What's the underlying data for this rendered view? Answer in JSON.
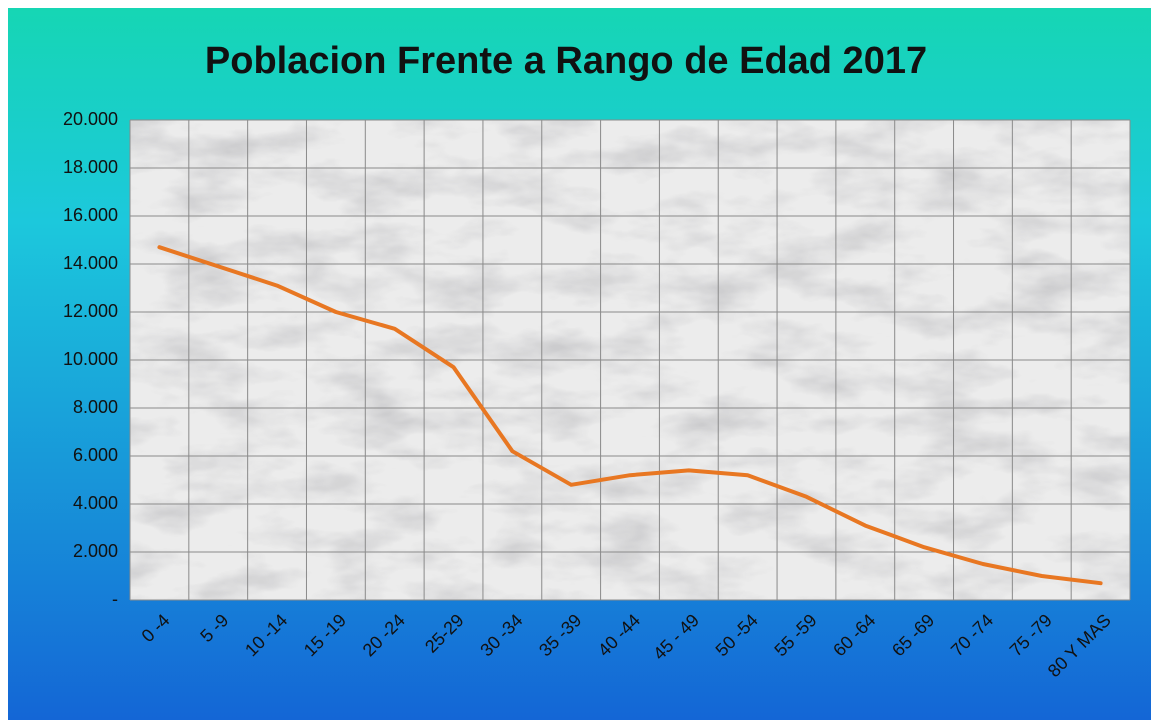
{
  "chart_data": {
    "type": "line",
    "title": "Poblacion Frente a Rango de Edad 2017",
    "categories": [
      "0 -4",
      "5 -9",
      "10 -14",
      "15 -19",
      "20 -24",
      "25-29",
      "30 -34",
      "35 -39",
      "40 -44",
      "45 - 49",
      "50 -54",
      "55 -59",
      "60 -64",
      "65 -69",
      "70 -74",
      "75 -79",
      "80 Y MAS"
    ],
    "series": [
      {
        "color": "#e87722",
        "values": [
          14700,
          13900,
          13100,
          12000,
          11300,
          9700,
          6200,
          4800,
          5200,
          5400,
          5200,
          4300,
          3100,
          2200,
          1500,
          1000,
          700
        ]
      }
    ],
    "ylim": [
      0,
      20000
    ],
    "yticks": [
      {
        "value": 0,
        "label": "-"
      },
      {
        "value": 2000,
        "label": "2.000"
      },
      {
        "value": 4000,
        "label": "4.000"
      },
      {
        "value": 6000,
        "label": "6.000"
      },
      {
        "value": 8000,
        "label": "8.000"
      },
      {
        "value": 10000,
        "label": "10.000"
      },
      {
        "value": 12000,
        "label": "12.000"
      },
      {
        "value": 14000,
        "label": "14.000"
      },
      {
        "value": 16000,
        "label": "16.000"
      },
      {
        "value": 18000,
        "label": "18.000"
      },
      {
        "value": 20000,
        "label": "20.000"
      }
    ],
    "grid": true
  }
}
